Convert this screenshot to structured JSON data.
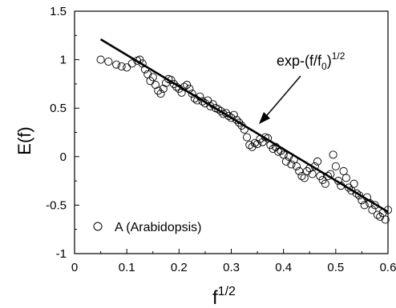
{
  "chart_data": {
    "type": "scatter",
    "xlabel": {
      "base": "f",
      "sup": "1/2"
    },
    "ylabel": "E(f)",
    "xlim": [
      0,
      0.6
    ],
    "ylim": [
      -1,
      1.5
    ],
    "x_ticks": [
      {
        "value": 0,
        "label": "0"
      },
      {
        "value": 0.1,
        "label": "0.1"
      },
      {
        "value": 0.2,
        "label": "0.2"
      },
      {
        "value": 0.3,
        "label": "0.3"
      },
      {
        "value": 0.4,
        "label": "0.4"
      },
      {
        "value": 0.5,
        "label": "0.5"
      },
      {
        "value": 0.6,
        "label": "0.6"
      }
    ],
    "y_ticks": [
      {
        "value": -1,
        "label": "-1"
      },
      {
        "value": -0.5,
        "label": "-0.5"
      },
      {
        "value": 0,
        "label": "0"
      },
      {
        "value": 0.5,
        "label": "0.5"
      },
      {
        "value": 1,
        "label": "1"
      },
      {
        "value": 1.5,
        "label": "1.5"
      }
    ],
    "grid": false,
    "legend": {
      "placement": "bottom-left",
      "label": "A  (Arabidopsis)"
    },
    "annotation": {
      "text_base": "exp-(f/f",
      "text_sub": "0",
      "text_close": ")",
      "text_sup": "1/2"
    },
    "fit_line": {
      "x": [
        0.05,
        0.6
      ],
      "y": [
        1.21,
        -0.57
      ]
    },
    "series": [
      {
        "name": "A  (Arabidopsis)",
        "marker": "open-circle",
        "points": [
          [
            0.05,
            1.0
          ],
          [
            0.065,
            0.98
          ],
          [
            0.08,
            0.95
          ],
          [
            0.09,
            0.93
          ],
          [
            0.1,
            0.92
          ],
          [
            0.11,
            0.96
          ],
          [
            0.12,
            0.99
          ],
          [
            0.125,
            1.0
          ],
          [
            0.13,
            0.96
          ],
          [
            0.135,
            0.9
          ],
          [
            0.14,
            0.85
          ],
          [
            0.145,
            0.78
          ],
          [
            0.15,
            0.82
          ],
          [
            0.155,
            0.74
          ],
          [
            0.16,
            0.68
          ],
          [
            0.165,
            0.65
          ],
          [
            0.17,
            0.7
          ],
          [
            0.175,
            0.76
          ],
          [
            0.18,
            0.8
          ],
          [
            0.185,
            0.79
          ],
          [
            0.19,
            0.75
          ],
          [
            0.195,
            0.72
          ],
          [
            0.2,
            0.7
          ],
          [
            0.205,
            0.66
          ],
          [
            0.21,
            0.72
          ],
          [
            0.215,
            0.74
          ],
          [
            0.22,
            0.7
          ],
          [
            0.225,
            0.65
          ],
          [
            0.23,
            0.6
          ],
          [
            0.235,
            0.58
          ],
          [
            0.24,
            0.62
          ],
          [
            0.245,
            0.57
          ],
          [
            0.25,
            0.55
          ],
          [
            0.255,
            0.58
          ],
          [
            0.26,
            0.52
          ],
          [
            0.265,
            0.54
          ],
          [
            0.27,
            0.5
          ],
          [
            0.275,
            0.49
          ],
          [
            0.28,
            0.47
          ],
          [
            0.285,
            0.44
          ],
          [
            0.29,
            0.45
          ],
          [
            0.295,
            0.42
          ],
          [
            0.3,
            0.4
          ],
          [
            0.305,
            0.43
          ],
          [
            0.31,
            0.38
          ],
          [
            0.315,
            0.35
          ],
          [
            0.32,
            0.32
          ],
          [
            0.325,
            0.28
          ],
          [
            0.33,
            0.2
          ],
          [
            0.335,
            0.12
          ],
          [
            0.34,
            0.1
          ],
          [
            0.345,
            0.14
          ],
          [
            0.35,
            0.13
          ],
          [
            0.355,
            0.18
          ],
          [
            0.36,
            0.15
          ],
          [
            0.365,
            0.2
          ],
          [
            0.37,
            0.19
          ],
          [
            0.375,
            0.12
          ],
          [
            0.38,
            0.08
          ],
          [
            0.385,
            0.1
          ],
          [
            0.39,
            0.05
          ],
          [
            0.395,
            0.06
          ],
          [
            0.4,
            0.02
          ],
          [
            0.405,
            -0.05
          ],
          [
            0.41,
            0.0
          ],
          [
            0.415,
            -0.08
          ],
          [
            0.42,
            -0.03
          ],
          [
            0.425,
            -0.1
          ],
          [
            0.43,
            -0.15
          ],
          [
            0.435,
            -0.2
          ],
          [
            0.44,
            -0.22
          ],
          [
            0.445,
            -0.15
          ],
          [
            0.45,
            -0.12
          ],
          [
            0.455,
            -0.18
          ],
          [
            0.46,
            -0.1
          ],
          [
            0.465,
            -0.05
          ],
          [
            0.47,
            -0.2
          ],
          [
            0.475,
            -0.24
          ],
          [
            0.48,
            -0.28
          ],
          [
            0.485,
            -0.2
          ],
          [
            0.49,
            -0.18
          ],
          [
            0.495,
            0.02
          ],
          [
            0.5,
            -0.1
          ],
          [
            0.505,
            -0.25
          ],
          [
            0.51,
            -0.3
          ],
          [
            0.515,
            -0.15
          ],
          [
            0.52,
            -0.22
          ],
          [
            0.525,
            -0.32
          ],
          [
            0.53,
            -0.35
          ],
          [
            0.535,
            -0.28
          ],
          [
            0.54,
            -0.38
          ],
          [
            0.545,
            -0.4
          ],
          [
            0.55,
            -0.45
          ],
          [
            0.555,
            -0.5
          ],
          [
            0.56,
            -0.42
          ],
          [
            0.565,
            -0.48
          ],
          [
            0.57,
            -0.55
          ],
          [
            0.575,
            -0.5
          ],
          [
            0.58,
            -0.6
          ],
          [
            0.585,
            -0.62
          ],
          [
            0.59,
            -0.58
          ],
          [
            0.595,
            -0.65
          ],
          [
            0.6,
            -0.55
          ]
        ]
      }
    ]
  }
}
